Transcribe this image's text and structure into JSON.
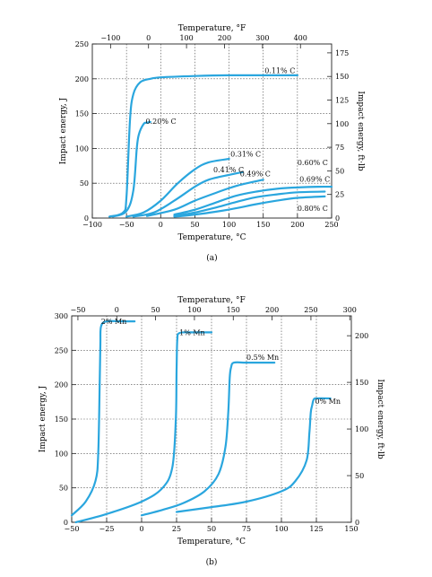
{
  "chart_data": [
    {
      "type": "line",
      "caption": "(a)",
      "top_title": "Temperature, °F",
      "xlabel": "Temperature, °C",
      "ylabel": "Impact energy, J",
      "ylabel_right": "Impact energy, ft·lb",
      "xlim": [
        -100,
        250
      ],
      "ylim": [
        0,
        250
      ],
      "xticks": [
        -100,
        -50,
        0,
        50,
        100,
        150,
        200,
        250
      ],
      "yticks": [
        0,
        50,
        100,
        150,
        200,
        250
      ],
      "top_lim": [
        -148,
        482
      ],
      "top_ticks": [
        -100,
        0,
        100,
        200,
        300,
        400
      ],
      "top_tick_labels": [
        "−100",
        "0",
        "100",
        "200",
        "300",
        "400"
      ],
      "x_tick_labels": [
        "−100",
        "−50",
        "0",
        "50",
        "100",
        "150",
        "200",
        "250"
      ],
      "right_lim": [
        0,
        184.4
      ],
      "right_ticks": [
        0,
        25,
        50,
        75,
        100,
        125,
        150,
        175
      ],
      "grid": true,
      "series": [
        {
          "name": "0.11% C",
          "x": [
            -75,
            -55,
            -50,
            -45,
            -40,
            -30,
            -15,
            0,
            50,
            100,
            150,
            200
          ],
          "y": [
            2,
            8,
            30,
            140,
            178,
            195,
            200,
            202,
            204,
            205,
            205,
            205
          ]
        },
        {
          "name": "0.20% C",
          "x": [
            -70,
            -50,
            -40,
            -35,
            -32,
            -25,
            -20,
            -15
          ],
          "y": [
            2,
            10,
            40,
            100,
            120,
            135,
            137,
            138
          ]
        },
        {
          "name": "0.31% C",
          "x": [
            -50,
            -25,
            0,
            25,
            50,
            70,
            100
          ],
          "y": [
            2,
            8,
            25,
            50,
            70,
            80,
            85
          ]
        },
        {
          "name": "0.41% C",
          "x": [
            -40,
            -10,
            20,
            50,
            70,
            100,
            120
          ],
          "y": [
            2,
            8,
            25,
            45,
            55,
            62,
            66
          ]
        },
        {
          "name": "0.49% C",
          "x": [
            -20,
            20,
            50,
            80,
            110,
            140,
            150
          ],
          "y": [
            3,
            12,
            25,
            36,
            46,
            53,
            55
          ]
        },
        {
          "name": "0.60% C",
          "x": [
            20,
            50,
            80,
            110,
            140,
            170,
            200,
            230,
            250
          ],
          "y": [
            5,
            12,
            22,
            32,
            38,
            42,
            44,
            45,
            45
          ]
        },
        {
          "name": "0.69% C",
          "x": [
            20,
            50,
            80,
            110,
            140,
            170,
            200,
            240
          ],
          "y": [
            3,
            8,
            15,
            23,
            30,
            34,
            37,
            38
          ]
        },
        {
          "name": "0.80% C",
          "x": [
            20,
            50,
            80,
            110,
            140,
            170,
            200,
            240
          ],
          "y": [
            2,
            5,
            9,
            14,
            20,
            25,
            29,
            31
          ]
        }
      ],
      "annotations": [
        {
          "text": "0.11% C",
          "x": 152,
          "y": 208
        },
        {
          "text": "0.20% C",
          "x": -22,
          "y": 135
        },
        {
          "text": "0.31% C",
          "x": 102,
          "y": 88
        },
        {
          "text": "0.41% C",
          "x": 77,
          "y": 66
        },
        {
          "text": "0.49% C",
          "x": 116,
          "y": 60
        },
        {
          "text": "0.60% C",
          "x": 200,
          "y": 76
        },
        {
          "text": "0.69% C",
          "x": 203,
          "y": 52
        },
        {
          "text": "0.80% C",
          "x": 200,
          "y": 10
        }
      ]
    },
    {
      "type": "line",
      "caption": "(b)",
      "top_title": "Temperature, °F",
      "xlabel": "Temperature, °C",
      "ylabel": "Impact energy, J",
      "ylabel_right": "Impact energy, ft·lb",
      "xlim": [
        -50,
        150
      ],
      "ylim": [
        0,
        300
      ],
      "xticks": [
        -50,
        -25,
        0,
        25,
        50,
        75,
        100,
        125,
        150
      ],
      "yticks": [
        0,
        50,
        100,
        150,
        200,
        250,
        300
      ],
      "top_lim": [
        -58,
        302
      ],
      "top_ticks": [
        -50,
        0,
        50,
        100,
        150,
        200,
        250,
        300
      ],
      "top_tick_labels": [
        "−50",
        "0",
        "50",
        "100",
        "150",
        "200",
        "250",
        "300"
      ],
      "x_tick_labels": [
        "−50",
        "−25",
        "0",
        "25",
        "50",
        "75",
        "100",
        "125",
        "150"
      ],
      "right_lim": [
        0,
        221.3
      ],
      "right_ticks": [
        0,
        50,
        100,
        150,
        200
      ],
      "grid": true,
      "series": [
        {
          "name": "2% Mn",
          "x": [
            -50,
            -40,
            -33,
            -31,
            -30,
            -29.5,
            -29,
            -25,
            -15,
            -5
          ],
          "y": [
            10,
            30,
            60,
            100,
            200,
            260,
            285,
            292,
            292,
            292
          ]
        },
        {
          "name": "1% Mn",
          "x": [
            -47,
            -25,
            0,
            15,
            22,
            24.5,
            25,
            25.5,
            27,
            35,
            50
          ],
          "y": [
            0,
            12,
            30,
            50,
            80,
            150,
            220,
            265,
            275,
            276,
            276
          ]
        },
        {
          "name": "0.5% Mn",
          "x": [
            0,
            15,
            30,
            45,
            55,
            60,
            62,
            63,
            64,
            66,
            75,
            95
          ],
          "y": [
            10,
            18,
            28,
            45,
            70,
            110,
            160,
            210,
            225,
            232,
            232,
            232
          ]
        },
        {
          "name": "0% Mn",
          "x": [
            25,
            50,
            75,
            100,
            110,
            118,
            120,
            121,
            122,
            123,
            125,
            135
          ],
          "y": [
            15,
            22,
            30,
            45,
            60,
            90,
            130,
            160,
            170,
            178,
            180,
            180
          ]
        }
      ],
      "annotations": [
        {
          "text": "2% Mn",
          "x": -29,
          "y": 288
        },
        {
          "text": "1% Mn",
          "x": 27,
          "y": 272
        },
        {
          "text": "0.5% Mn",
          "x": 75,
          "y": 236
        },
        {
          "text": "0% Mn",
          "x": 124,
          "y": 172
        }
      ]
    }
  ]
}
